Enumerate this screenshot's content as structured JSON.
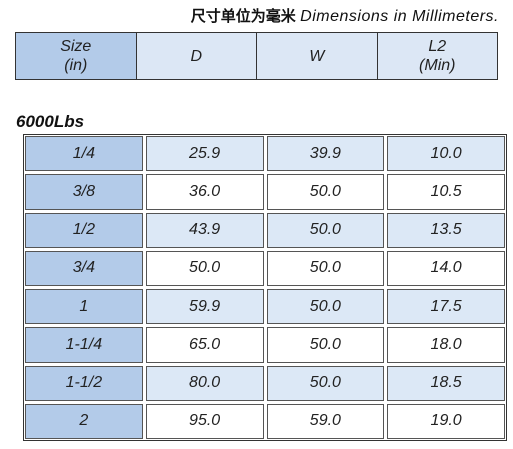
{
  "caption": {
    "chinese": "尺寸单位为毫米",
    "english": "Dimensions in Millimeters."
  },
  "header": [
    [
      "Size",
      "(in)"
    ],
    [
      "D"
    ],
    [
      "W"
    ],
    [
      "L2",
      "(Min)"
    ]
  ],
  "section_title": "6000Lbs",
  "table": {
    "rows": [
      [
        "1/4",
        "25.9",
        "39.9",
        "10.0"
      ],
      [
        "3/8",
        "36.0",
        "50.0",
        "10.5"
      ],
      [
        "1/2",
        "43.9",
        "50.0",
        "13.5"
      ],
      [
        "3/4",
        "50.0",
        "50.0",
        "14.0"
      ],
      [
        "1",
        "59.9",
        "50.0",
        "17.5"
      ],
      [
        "1-1/4",
        "65.0",
        "50.0",
        "18.0"
      ],
      [
        "1-1/2",
        "80.0",
        "50.0",
        "18.5"
      ],
      [
        "2",
        "95.0",
        "59.0",
        "19.0"
      ]
    ]
  }
}
